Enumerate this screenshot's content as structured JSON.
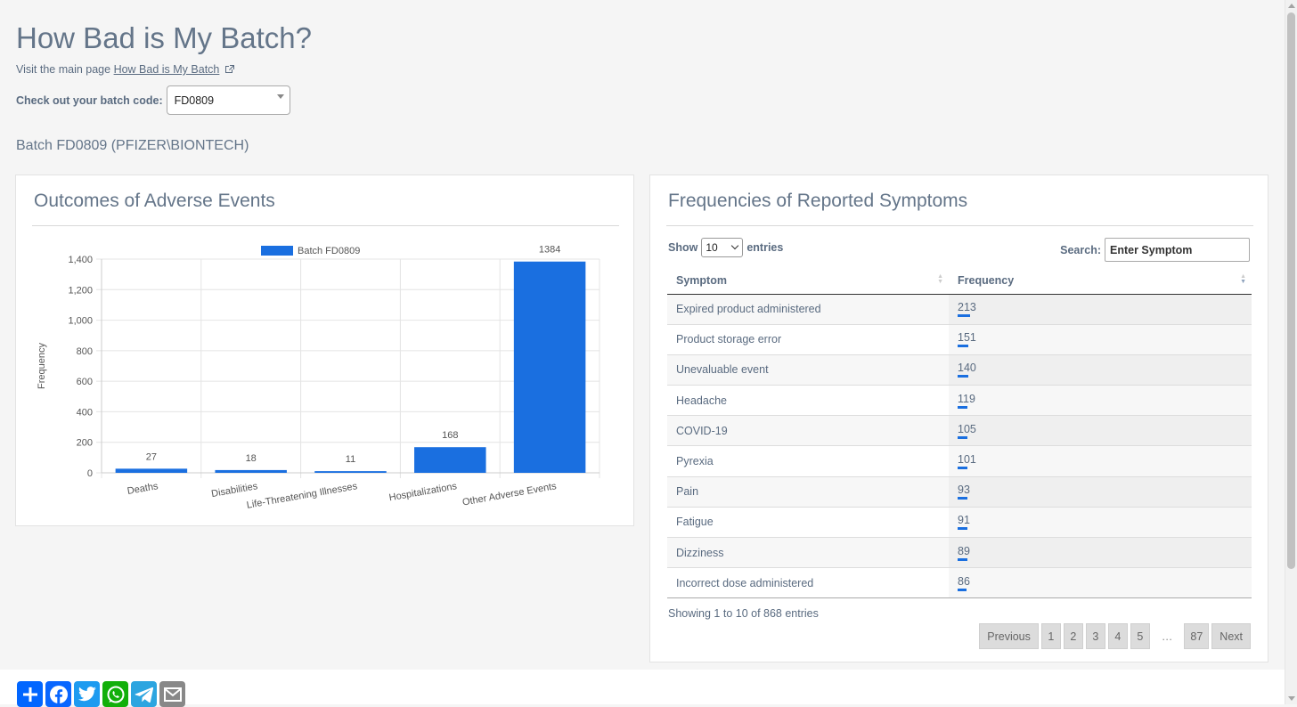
{
  "header": {
    "title": "How Bad is My Batch?",
    "visit_prefix": "Visit the main page",
    "visit_link": "How Bad is My Batch",
    "batch_label": "Check out your batch code:",
    "batch_value": "FD0809",
    "batch_heading": "Batch FD0809 (PFIZER\\BIONTECH)"
  },
  "outcomes_card": {
    "title": "Outcomes of Adverse Events"
  },
  "chart_data": {
    "type": "bar",
    "title": "Outcomes of Adverse Events",
    "categories": [
      "Deaths",
      "Disabilities",
      "Life-Threatening Illnesses",
      "Hospitalizations",
      "Other Adverse Events"
    ],
    "series": [
      {
        "name": "Batch FD0809",
        "values": [
          27,
          18,
          11,
          168,
          1384
        ]
      }
    ],
    "xlabel": "",
    "ylabel": "Frequency",
    "ylim": [
      0,
      1400
    ],
    "yticks": [
      "0",
      "200",
      "400",
      "600",
      "800",
      "1,000",
      "1,200",
      "1,400"
    ],
    "legend_position": "top",
    "grid": true,
    "color": "#1a6fe0"
  },
  "symptoms_card": {
    "title": "Frequencies of Reported Symptoms",
    "show_label": "Show",
    "entries_label": "entries",
    "page_length": "10",
    "search_label": "Search:",
    "search_placeholder": "Enter Symptom",
    "columns": [
      "Symptom",
      "Frequency"
    ],
    "rows": [
      {
        "symptom": "Expired product administered",
        "frequency": "213",
        "bar": 213
      },
      {
        "symptom": "Product storage error",
        "frequency": "151",
        "bar": 151
      },
      {
        "symptom": "Unevaluable event",
        "frequency": "140",
        "bar": 140
      },
      {
        "symptom": "Headache",
        "frequency": "119",
        "bar": 119
      },
      {
        "symptom": "COVID-19",
        "frequency": "105",
        "bar": 105
      },
      {
        "symptom": "Pyrexia",
        "frequency": "101",
        "bar": 101
      },
      {
        "symptom": "Pain",
        "frequency": "93",
        "bar": 93
      },
      {
        "symptom": "Fatigue",
        "frequency": "91",
        "bar": 91
      },
      {
        "symptom": "Dizziness",
        "frequency": "89",
        "bar": 89
      },
      {
        "symptom": "Incorrect dose administered",
        "frequency": "86",
        "bar": 86
      }
    ],
    "info": "Showing 1 to 10 of 868 entries",
    "pager": {
      "previous": "Previous",
      "pages": [
        "1",
        "2",
        "3",
        "4",
        "5"
      ],
      "ellipsis": "…",
      "last": "87",
      "next": "Next"
    }
  },
  "colors": {
    "accent": "#1a6fe0",
    "share_blue": "#0166ff",
    "facebook": "#0866ff",
    "twitter": "#1d9bf0",
    "whatsapp": "#12af0a",
    "telegram": "#2ca5e0",
    "email": "#888888"
  }
}
